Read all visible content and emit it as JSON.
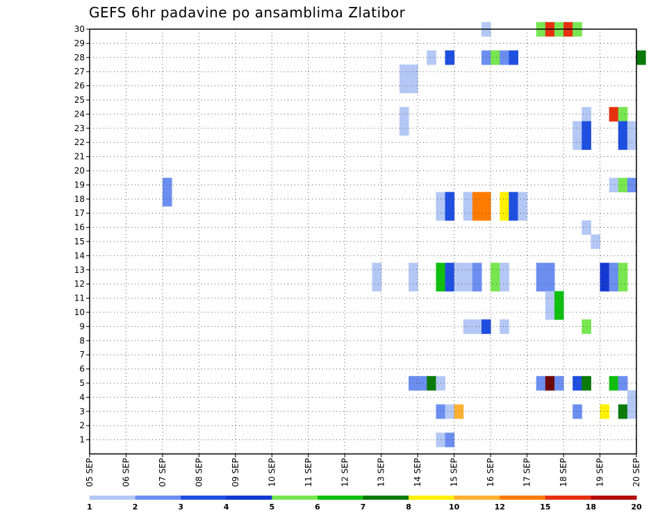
{
  "chart_data": {
    "type": "heatmap",
    "title": "GEFS 6hr padavine po ansamblima Zlatibor",
    "xlabel": "",
    "ylabel": "",
    "x_tick_labels": [
      "05 SEP",
      "06 SEP",
      "07 SEP",
      "08 SEP",
      "09 SEP",
      "10 SEP",
      "11 SEP",
      "12 SEP",
      "13 SEP",
      "14 SEP",
      "15 SEP",
      "16 SEP",
      "17 SEP",
      "18 SEP",
      "19 SEP",
      "20 SEP"
    ],
    "x_range_days": [
      0,
      15
    ],
    "y_tick_labels": [
      "1",
      "2",
      "3",
      "4",
      "5",
      "6",
      "7",
      "8",
      "9",
      "10",
      "11",
      "12",
      "13",
      "14",
      "15",
      "16",
      "17",
      "18",
      "19",
      "20",
      "21",
      "22",
      "23",
      "24",
      "25",
      "26",
      "27",
      "28",
      "29",
      "30"
    ],
    "y_range": [
      0,
      30
    ],
    "grid": true,
    "colorbar": {
      "labels": [
        "1",
        "2",
        "3",
        "4",
        "5",
        "6",
        "7",
        "8",
        "10",
        "12",
        "15",
        "18",
        "20"
      ],
      "colors": [
        "#b4c8f5",
        "#6b8ef0",
        "#1f4fe0",
        "#1438d2",
        "#78e650",
        "#10c010",
        "#0a7a0a",
        "#fff000",
        "#ffb030",
        "#ff7c00",
        "#e63010",
        "#b40e0e",
        "#6e0606"
      ]
    },
    "cells": [
      {
        "m": 30,
        "d": 10.75,
        "c": 0
      },
      {
        "m": 30,
        "d": 12.25,
        "c": 4
      },
      {
        "m": 30,
        "d": 12.5,
        "c": 10
      },
      {
        "m": 30,
        "d": 12.75,
        "c": 4
      },
      {
        "m": 30,
        "d": 13.0,
        "c": 10
      },
      {
        "m": 30,
        "d": 13.25,
        "c": 4
      },
      {
        "m": 28,
        "d": 9.25,
        "c": 0
      },
      {
        "m": 28,
        "d": 9.75,
        "c": 2
      },
      {
        "m": 28,
        "d": 10.75,
        "c": 1
      },
      {
        "m": 28,
        "d": 11.0,
        "c": 4
      },
      {
        "m": 28,
        "d": 11.25,
        "c": 1
      },
      {
        "m": 28,
        "d": 11.5,
        "c": 2
      },
      {
        "m": 28,
        "d": 15.0,
        "c": 6
      },
      {
        "m": 27,
        "d": 8.5,
        "c": 0
      },
      {
        "m": 27,
        "d": 8.75,
        "c": 0
      },
      {
        "m": 26,
        "d": 8.5,
        "c": 0
      },
      {
        "m": 26,
        "d": 8.75,
        "c": 0
      },
      {
        "m": 24,
        "d": 8.5,
        "c": 0
      },
      {
        "m": 24,
        "d": 13.5,
        "c": 0
      },
      {
        "m": 24,
        "d": 14.25,
        "c": 10
      },
      {
        "m": 24,
        "d": 14.5,
        "c": 4
      },
      {
        "m": 23,
        "d": 8.5,
        "c": 0
      },
      {
        "m": 23,
        "d": 13.25,
        "c": 0
      },
      {
        "m": 23,
        "d": 13.5,
        "c": 2
      },
      {
        "m": 23,
        "d": 14.5,
        "c": 2
      },
      {
        "m": 23,
        "d": 14.75,
        "c": 0
      },
      {
        "m": 22,
        "d": 13.25,
        "c": 0
      },
      {
        "m": 22,
        "d": 13.5,
        "c": 2
      },
      {
        "m": 22,
        "d": 14.5,
        "c": 2
      },
      {
        "m": 22,
        "d": 14.75,
        "c": 0
      },
      {
        "m": 19,
        "d": 2.0,
        "c": 1
      },
      {
        "m": 19,
        "d": 14.25,
        "c": 0
      },
      {
        "m": 19,
        "d": 14.5,
        "c": 4
      },
      {
        "m": 19,
        "d": 14.75,
        "c": 1
      },
      {
        "m": 18,
        "d": 2.0,
        "c": 1
      },
      {
        "m": 18,
        "d": 9.5,
        "c": 0
      },
      {
        "m": 18,
        "d": 9.75,
        "c": 2
      },
      {
        "m": 18,
        "d": 10.25,
        "c": 0
      },
      {
        "m": 18,
        "d": 10.5,
        "c": 9
      },
      {
        "m": 18,
        "d": 10.75,
        "c": 9
      },
      {
        "m": 18,
        "d": 11.25,
        "c": 7
      },
      {
        "m": 18,
        "d": 11.5,
        "c": 2
      },
      {
        "m": 18,
        "d": 11.75,
        "c": 0
      },
      {
        "m": 17,
        "d": 9.5,
        "c": 0
      },
      {
        "m": 17,
        "d": 9.75,
        "c": 2
      },
      {
        "m": 17,
        "d": 10.25,
        "c": 0
      },
      {
        "m": 17,
        "d": 10.5,
        "c": 9
      },
      {
        "m": 17,
        "d": 10.75,
        "c": 9
      },
      {
        "m": 17,
        "d": 11.25,
        "c": 7
      },
      {
        "m": 17,
        "d": 11.5,
        "c": 2
      },
      {
        "m": 17,
        "d": 11.75,
        "c": 0
      },
      {
        "m": 16,
        "d": 13.5,
        "c": 0
      },
      {
        "m": 15,
        "d": 13.75,
        "c": 0
      },
      {
        "m": 13,
        "d": 7.75,
        "c": 0
      },
      {
        "m": 13,
        "d": 8.75,
        "c": 0
      },
      {
        "m": 13,
        "d": 9.5,
        "c": 5
      },
      {
        "m": 13,
        "d": 9.75,
        "c": 2
      },
      {
        "m": 13,
        "d": 10.0,
        "c": 0
      },
      {
        "m": 13,
        "d": 10.25,
        "c": 0
      },
      {
        "m": 13,
        "d": 10.5,
        "c": 1
      },
      {
        "m": 13,
        "d": 11.0,
        "c": 4
      },
      {
        "m": 13,
        "d": 11.25,
        "c": 0
      },
      {
        "m": 13,
        "d": 12.25,
        "c": 1
      },
      {
        "m": 13,
        "d": 12.5,
        "c": 1
      },
      {
        "m": 13,
        "d": 14.0,
        "c": 3
      },
      {
        "m": 13,
        "d": 14.25,
        "c": 1
      },
      {
        "m": 13,
        "d": 14.5,
        "c": 4
      },
      {
        "m": 12,
        "d": 7.75,
        "c": 0
      },
      {
        "m": 12,
        "d": 8.75,
        "c": 0
      },
      {
        "m": 12,
        "d": 9.5,
        "c": 5
      },
      {
        "m": 12,
        "d": 9.75,
        "c": 2
      },
      {
        "m": 12,
        "d": 10.0,
        "c": 0
      },
      {
        "m": 12,
        "d": 10.25,
        "c": 0
      },
      {
        "m": 12,
        "d": 10.5,
        "c": 1
      },
      {
        "m": 12,
        "d": 11.0,
        "c": 4
      },
      {
        "m": 12,
        "d": 11.25,
        "c": 0
      },
      {
        "m": 12,
        "d": 12.25,
        "c": 1
      },
      {
        "m": 12,
        "d": 12.5,
        "c": 1
      },
      {
        "m": 12,
        "d": 14.0,
        "c": 3
      },
      {
        "m": 12,
        "d": 14.25,
        "c": 1
      },
      {
        "m": 12,
        "d": 14.5,
        "c": 4
      },
      {
        "m": 11,
        "d": 12.5,
        "c": 0
      },
      {
        "m": 11,
        "d": 12.75,
        "c": 5
      },
      {
        "m": 10,
        "d": 12.5,
        "c": 0
      },
      {
        "m": 10,
        "d": 12.75,
        "c": 5
      },
      {
        "m": 9,
        "d": 10.25,
        "c": 0
      },
      {
        "m": 9,
        "d": 10.5,
        "c": 0
      },
      {
        "m": 9,
        "d": 10.75,
        "c": 2
      },
      {
        "m": 9,
        "d": 11.25,
        "c": 0
      },
      {
        "m": 9,
        "d": 13.5,
        "c": 4
      },
      {
        "m": 5,
        "d": 8.75,
        "c": 1
      },
      {
        "m": 5,
        "d": 9.0,
        "c": 1
      },
      {
        "m": 5,
        "d": 9.25,
        "c": 6
      },
      {
        "m": 5,
        "d": 9.5,
        "c": 0
      },
      {
        "m": 5,
        "d": 12.25,
        "c": 1
      },
      {
        "m": 5,
        "d": 12.5,
        "c": 12
      },
      {
        "m": 5,
        "d": 12.75,
        "c": 1
      },
      {
        "m": 5,
        "d": 13.25,
        "c": 2
      },
      {
        "m": 5,
        "d": 13.5,
        "c": 6
      },
      {
        "m": 5,
        "d": 14.25,
        "c": 5
      },
      {
        "m": 5,
        "d": 14.5,
        "c": 1
      },
      {
        "m": 4,
        "d": 14.75,
        "c": 0
      },
      {
        "m": 3,
        "d": 9.5,
        "c": 1
      },
      {
        "m": 3,
        "d": 9.75,
        "c": 0
      },
      {
        "m": 3,
        "d": 10.0,
        "c": 8
      },
      {
        "m": 3,
        "d": 13.25,
        "c": 1
      },
      {
        "m": 3,
        "d": 14.0,
        "c": 7
      },
      {
        "m": 3,
        "d": 14.5,
        "c": 6
      },
      {
        "m": 3,
        "d": 14.75,
        "c": 0
      },
      {
        "m": 1,
        "d": 9.5,
        "c": 0
      },
      {
        "m": 1,
        "d": 9.75,
        "c": 1
      }
    ]
  }
}
